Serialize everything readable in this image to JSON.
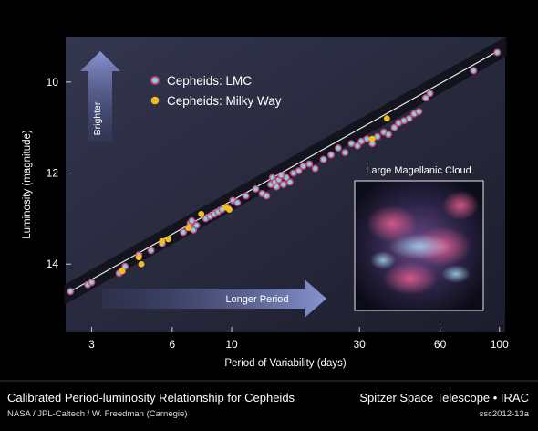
{
  "chart_data": {
    "type": "scatter",
    "xlabel": "Period of Variability (days)",
    "ylabel": "Luminosity (magnitude)",
    "x_scale": "log",
    "xlim": [
      2.4,
      105
    ],
    "ylim": [
      15.5,
      9.0
    ],
    "y_inverted": true,
    "x_ticks": [
      3,
      6,
      10,
      30,
      60,
      100
    ],
    "y_ticks": [
      10,
      12,
      14
    ],
    "legend_position": "top-left",
    "fit_line": {
      "x": [
        2.5,
        100
      ],
      "y": [
        14.6,
        9.3
      ]
    },
    "annotations": {
      "brighter_arrow": "Brighter",
      "period_arrow": "Longer Period",
      "inset_title": "Large Magellanic Cloud"
    },
    "series": [
      {
        "name": "Cepheids: LMC",
        "color": "#7fd3e0",
        "ring_color": "#d0467a",
        "points": [
          [
            2.5,
            14.6
          ],
          [
            2.9,
            14.45
          ],
          [
            3.0,
            14.4
          ],
          [
            3.8,
            14.2
          ],
          [
            3.9,
            14.15
          ],
          [
            4.0,
            14.05
          ],
          [
            4.5,
            13.8
          ],
          [
            5.0,
            13.7
          ],
          [
            5.5,
            13.55
          ],
          [
            6.6,
            13.3
          ],
          [
            6.9,
            13.2
          ],
          [
            7.0,
            13.1
          ],
          [
            7.1,
            13.05
          ],
          [
            7.2,
            13.25
          ],
          [
            7.4,
            13.15
          ],
          [
            8.0,
            13.0
          ],
          [
            8.3,
            12.95
          ],
          [
            8.6,
            12.9
          ],
          [
            8.9,
            12.85
          ],
          [
            9.2,
            12.8
          ],
          [
            9.6,
            12.75
          ],
          [
            10.1,
            12.6
          ],
          [
            10.5,
            12.65
          ],
          [
            11.3,
            12.5
          ],
          [
            12.3,
            12.35
          ],
          [
            13.0,
            12.45
          ],
          [
            13.5,
            12.5
          ],
          [
            14.0,
            12.25
          ],
          [
            14.2,
            12.1
          ],
          [
            14.5,
            12.2
          ],
          [
            14.7,
            12.3
          ],
          [
            15.0,
            12.15
          ],
          [
            15.3,
            12.05
          ],
          [
            15.6,
            12.25
          ],
          [
            16.0,
            12.1
          ],
          [
            16.5,
            12.2
          ],
          [
            17.0,
            12.0
          ],
          [
            17.8,
            11.95
          ],
          [
            18.5,
            11.85
          ],
          [
            19.5,
            11.8
          ],
          [
            20.5,
            11.9
          ],
          [
            22.0,
            11.7
          ],
          [
            23.5,
            11.6
          ],
          [
            25.0,
            11.45
          ],
          [
            26.5,
            11.55
          ],
          [
            28.0,
            11.35
          ],
          [
            29.5,
            11.4
          ],
          [
            30.5,
            11.3
          ],
          [
            32.0,
            11.25
          ],
          [
            33.5,
            11.35
          ],
          [
            35.0,
            11.2
          ],
          [
            37.0,
            11.1
          ],
          [
            38.5,
            11.15
          ],
          [
            40.5,
            11.0
          ],
          [
            42.0,
            10.9
          ],
          [
            44.0,
            10.85
          ],
          [
            46.0,
            10.8
          ],
          [
            48.0,
            10.7
          ],
          [
            50.0,
            10.65
          ],
          [
            53.0,
            10.35
          ],
          [
            55.0,
            10.25
          ],
          [
            80.0,
            9.75
          ],
          [
            98.0,
            9.35
          ]
        ]
      },
      {
        "name": "Cepheids: Milky Way",
        "color": "#f0c020",
        "points": [
          [
            3.9,
            14.15
          ],
          [
            4.5,
            13.85
          ],
          [
            4.6,
            14.0
          ],
          [
            5.5,
            13.5
          ],
          [
            5.8,
            13.45
          ],
          [
            6.9,
            13.2
          ],
          [
            7.7,
            12.9
          ],
          [
            9.5,
            12.75
          ],
          [
            9.8,
            12.8
          ],
          [
            33.5,
            11.25
          ],
          [
            38.0,
            10.8
          ]
        ]
      }
    ]
  },
  "caption": {
    "title": "Calibrated Period-luminosity Relationship for Cepheids",
    "credit": "NASA / JPL-Caltech / W. Freedman (Carnegie)",
    "mission": "Spitzer Space Telescope • IRAC",
    "image_id": "ssc2012-13a"
  }
}
